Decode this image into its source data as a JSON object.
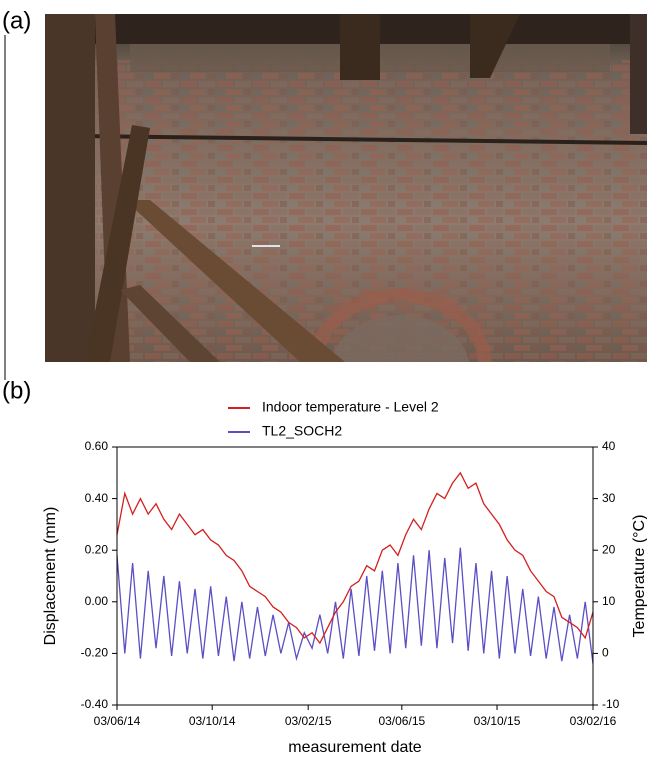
{
  "panel_labels": [
    "(a)",
    "(b)"
  ],
  "chart_data": {
    "type": "line",
    "xlabel": "measurement date",
    "ylabel": "Displacement (mm)",
    "y2label": "Temperature (°C)",
    "x": [
      "2014-06-03",
      "2014-06-13",
      "2014-06-23",
      "2014-07-03",
      "2014-07-13",
      "2014-07-23",
      "2014-08-02",
      "2014-08-12",
      "2014-08-22",
      "2014-09-01",
      "2014-09-11",
      "2014-09-21",
      "2014-10-01",
      "2014-10-11",
      "2014-10-21",
      "2014-10-31",
      "2014-11-10",
      "2014-11-20",
      "2014-11-30",
      "2014-12-10",
      "2014-12-20",
      "2014-12-30",
      "2015-01-09",
      "2015-01-19",
      "2015-01-29",
      "2015-02-08",
      "2015-02-18",
      "2015-02-28",
      "2015-03-10",
      "2015-03-20",
      "2015-03-30",
      "2015-04-09",
      "2015-04-19",
      "2015-04-29",
      "2015-05-09",
      "2015-05-19",
      "2015-05-29",
      "2015-06-08",
      "2015-06-18",
      "2015-06-28",
      "2015-07-08",
      "2015-07-18",
      "2015-07-28",
      "2015-08-07",
      "2015-08-17",
      "2015-08-27",
      "2015-09-06",
      "2015-09-16",
      "2015-09-26",
      "2015-10-06",
      "2015-10-16",
      "2015-10-26",
      "2015-11-05",
      "2015-11-15",
      "2015-11-25",
      "2015-12-05",
      "2015-12-15",
      "2015-12-25",
      "2016-01-04",
      "2016-01-14",
      "2016-01-24",
      "2016-02-03"
    ],
    "series": [
      {
        "name": "Indoor temperature - Level 2",
        "color": "#d42020",
        "axis": "y2",
        "values": [
          23,
          31,
          27,
          30,
          27,
          29,
          26,
          24,
          27,
          25,
          23,
          24,
          22,
          21,
          19,
          18,
          16,
          13,
          12,
          11,
          9,
          8,
          6,
          5,
          3,
          4,
          2,
          5,
          8,
          10,
          13,
          14,
          17,
          16,
          20,
          21,
          19,
          23,
          26,
          24,
          28,
          31,
          30,
          33,
          35,
          32,
          33,
          29,
          27,
          25,
          22,
          20,
          19,
          16,
          14,
          12,
          11,
          7,
          6,
          5,
          3,
          8
        ]
      },
      {
        "name": "TL2_SOCH2",
        "color": "#5b4fc4",
        "values": [
          0.18,
          -0.2,
          0.15,
          -0.22,
          0.12,
          -0.18,
          0.1,
          -0.21,
          0.08,
          -0.2,
          0.05,
          -0.22,
          0.06,
          -0.21,
          0.02,
          -0.23,
          0.0,
          -0.22,
          -0.02,
          -0.21,
          -0.05,
          -0.2,
          -0.08,
          -0.22,
          -0.12,
          -0.18,
          -0.05,
          -0.2,
          0.0,
          -0.22,
          0.05,
          -0.21,
          0.1,
          -0.19,
          0.12,
          -0.2,
          0.15,
          -0.18,
          0.18,
          -0.17,
          0.2,
          -0.18,
          0.17,
          -0.16,
          0.21,
          -0.19,
          0.15,
          -0.2,
          0.12,
          -0.22,
          0.1,
          -0.2,
          0.05,
          -0.21,
          0.02,
          -0.22,
          -0.02,
          -0.23,
          -0.05,
          -0.22,
          0.0,
          -0.24
        ]
      }
    ],
    "xlim": [
      "2014-06-03",
      "2016-02-03"
    ],
    "xticks": [
      {
        "value": "2014-06-03",
        "label": "03/06/14"
      },
      {
        "value": "2014-10-03",
        "label": "03/10/14"
      },
      {
        "value": "2015-02-03",
        "label": "03/02/15"
      },
      {
        "value": "2015-06-03",
        "label": "03/06/15"
      },
      {
        "value": "2015-10-03",
        "label": "03/10/15"
      },
      {
        "value": "2016-02-03",
        "label": "03/02/16"
      }
    ],
    "ylim": [
      -0.4,
      0.6
    ],
    "yticks": [
      {
        "value": -0.4,
        "label": "-0.40"
      },
      {
        "value": -0.2,
        "label": "-0.20"
      },
      {
        "value": 0,
        "label": "0.00"
      },
      {
        "value": 0.2,
        "label": "0.20"
      },
      {
        "value": 0.4,
        "label": "0.40"
      },
      {
        "value": 0.6,
        "label": "0.60"
      }
    ],
    "y2lim": [
      -10,
      40
    ],
    "y2ticks": [
      -10,
      0,
      10,
      20,
      30,
      40
    ],
    "legend": "top"
  }
}
